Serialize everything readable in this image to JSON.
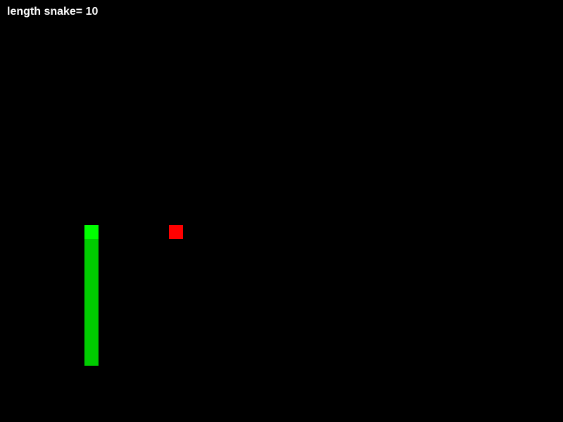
{
  "score_text": "length snake= 10",
  "grid": {
    "columns": 40,
    "rows": 30
  },
  "colors": {
    "background": "#000000",
    "text": "#ffffff",
    "snake_head": "#00ff00",
    "snake_body": "#00cc00",
    "food": "#ff0000"
  },
  "snake": [
    {
      "col": 6,
      "row": 16
    },
    {
      "col": 6,
      "row": 17
    },
    {
      "col": 6,
      "row": 18
    },
    {
      "col": 6,
      "row": 19
    },
    {
      "col": 6,
      "row": 20
    },
    {
      "col": 6,
      "row": 21
    },
    {
      "col": 6,
      "row": 22
    },
    {
      "col": 6,
      "row": 23
    },
    {
      "col": 6,
      "row": 24
    },
    {
      "col": 6,
      "row": 25
    }
  ],
  "food": {
    "col": 12,
    "row": 16
  }
}
